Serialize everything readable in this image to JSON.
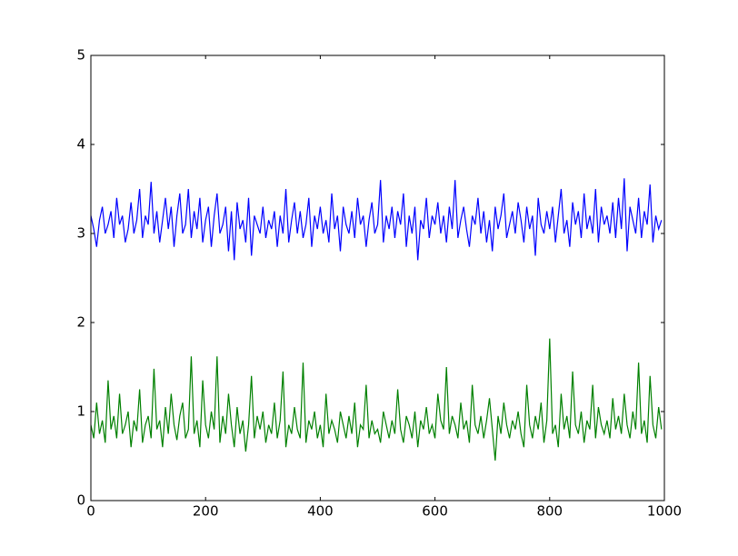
{
  "chart_data": {
    "type": "line",
    "x": [
      0,
      5,
      10,
      15,
      20,
      25,
      30,
      35,
      40,
      45,
      50,
      55,
      60,
      65,
      70,
      75,
      80,
      85,
      90,
      95,
      100,
      105,
      110,
      115,
      120,
      125,
      130,
      135,
      140,
      145,
      150,
      155,
      160,
      165,
      170,
      175,
      180,
      185,
      190,
      195,
      200,
      205,
      210,
      215,
      220,
      225,
      230,
      235,
      240,
      245,
      250,
      255,
      260,
      265,
      270,
      275,
      280,
      285,
      290,
      295,
      300,
      305,
      310,
      315,
      320,
      325,
      330,
      335,
      340,
      345,
      350,
      355,
      360,
      365,
      370,
      375,
      380,
      385,
      390,
      395,
      400,
      405,
      410,
      415,
      420,
      425,
      430,
      435,
      440,
      445,
      450,
      455,
      460,
      465,
      470,
      475,
      480,
      485,
      490,
      495,
      500,
      505,
      510,
      515,
      520,
      525,
      530,
      535,
      540,
      545,
      550,
      555,
      560,
      565,
      570,
      575,
      580,
      585,
      590,
      595,
      600,
      605,
      610,
      615,
      620,
      625,
      630,
      635,
      640,
      645,
      650,
      655,
      660,
      665,
      670,
      675,
      680,
      685,
      690,
      695,
      700,
      705,
      710,
      715,
      720,
      725,
      730,
      735,
      740,
      745,
      750,
      755,
      760,
      765,
      770,
      775,
      780,
      785,
      790,
      795,
      800,
      805,
      810,
      815,
      820,
      825,
      830,
      835,
      840,
      845,
      850,
      855,
      860,
      865,
      870,
      875,
      880,
      885,
      890,
      895,
      900,
      905,
      910,
      915,
      920,
      925,
      930,
      935,
      940,
      945,
      950,
      955,
      960,
      965,
      970,
      975,
      980,
      985,
      990,
      995
    ],
    "series": [
      {
        "color": "#0000ff",
        "values": [
          3.2,
          3.05,
          2.85,
          3.15,
          3.3,
          3.0,
          3.1,
          3.25,
          2.95,
          3.4,
          3.1,
          3.2,
          2.9,
          3.05,
          3.35,
          3.0,
          3.15,
          3.5,
          2.95,
          3.2,
          3.1,
          3.58,
          3.0,
          3.25,
          2.9,
          3.15,
          3.4,
          3.05,
          3.3,
          2.85,
          3.2,
          3.45,
          3.0,
          3.1,
          3.5,
          2.95,
          3.25,
          3.05,
          3.4,
          2.9,
          3.15,
          3.3,
          2.85,
          3.2,
          3.45,
          3.0,
          3.1,
          3.3,
          2.8,
          3.25,
          2.7,
          3.35,
          3.05,
          3.15,
          2.9,
          3.4,
          2.75,
          3.2,
          3.1,
          3.0,
          3.3,
          2.95,
          3.15,
          3.05,
          3.25,
          2.85,
          3.2,
          3.0,
          3.5,
          2.9,
          3.15,
          3.35,
          3.0,
          3.25,
          2.95,
          3.1,
          3.4,
          2.85,
          3.2,
          3.05,
          3.3,
          3.0,
          3.15,
          2.9,
          3.45,
          3.05,
          3.2,
          2.8,
          3.3,
          3.1,
          3.0,
          3.25,
          2.95,
          3.4,
          3.1,
          3.2,
          2.85,
          3.15,
          3.35,
          3.0,
          3.1,
          3.6,
          2.9,
          3.2,
          3.05,
          3.3,
          2.95,
          3.25,
          3.1,
          3.45,
          2.85,
          3.2,
          3.0,
          3.3,
          2.7,
          3.15,
          3.05,
          3.4,
          2.95,
          3.2,
          3.1,
          3.35,
          3.0,
          3.2,
          2.9,
          3.3,
          3.05,
          3.6,
          2.95,
          3.15,
          3.3,
          3.05,
          2.85,
          3.2,
          3.1,
          3.4,
          3.0,
          3.25,
          2.9,
          3.15,
          2.8,
          3.3,
          3.05,
          3.2,
          3.45,
          2.95,
          3.1,
          3.25,
          3.0,
          3.35,
          3.15,
          2.9,
          3.3,
          3.05,
          3.2,
          2.75,
          3.4,
          3.1,
          3.0,
          3.25,
          3.05,
          3.3,
          2.9,
          3.2,
          3.5,
          3.0,
          3.15,
          2.85,
          3.35,
          3.1,
          3.25,
          2.95,
          3.45,
          3.05,
          3.2,
          3.0,
          3.5,
          2.9,
          3.3,
          3.1,
          3.2,
          3.0,
          3.35,
          2.95,
          3.4,
          3.05,
          3.62,
          2.8,
          3.3,
          3.15,
          3.0,
          3.4,
          2.95,
          3.25,
          3.1,
          3.55,
          2.9,
          3.2,
          3.05,
          3.15
        ]
      },
      {
        "color": "#008000",
        "values": [
          0.85,
          0.7,
          1.1,
          0.75,
          0.9,
          0.65,
          1.35,
          0.8,
          0.95,
          0.7,
          1.2,
          0.75,
          0.85,
          1.0,
          0.6,
          0.9,
          0.78,
          1.25,
          0.65,
          0.85,
          0.95,
          0.7,
          1.48,
          0.8,
          0.9,
          0.6,
          1.05,
          0.75,
          1.2,
          0.85,
          0.68,
          0.95,
          1.1,
          0.7,
          0.8,
          1.62,
          0.75,
          0.9,
          0.6,
          1.35,
          0.85,
          0.7,
          1.0,
          0.8,
          1.62,
          0.65,
          0.95,
          0.75,
          1.2,
          0.85,
          0.6,
          1.05,
          0.75,
          0.9,
          0.55,
          0.85,
          1.4,
          0.7,
          0.95,
          0.8,
          1.0,
          0.65,
          0.85,
          0.75,
          1.1,
          0.7,
          0.9,
          1.45,
          0.6,
          0.85,
          0.75,
          1.05,
          0.8,
          0.7,
          1.55,
          0.65,
          0.9,
          0.8,
          1.0,
          0.7,
          0.85,
          0.6,
          1.2,
          0.75,
          0.9,
          0.8,
          0.65,
          1.0,
          0.85,
          0.7,
          0.95,
          0.75,
          1.1,
          0.6,
          0.85,
          0.8,
          1.3,
          0.7,
          0.9,
          0.75,
          0.8,
          0.65,
          1.0,
          0.85,
          0.7,
          0.9,
          0.75,
          1.25,
          0.8,
          0.65,
          0.95,
          0.85,
          0.7,
          1.0,
          0.6,
          0.9,
          0.8,
          1.05,
          0.75,
          0.85,
          0.7,
          1.2,
          0.9,
          0.8,
          1.5,
          0.75,
          0.95,
          0.85,
          0.7,
          1.1,
          0.8,
          0.9,
          0.65,
          1.3,
          0.85,
          0.75,
          0.95,
          0.7,
          0.9,
          1.15,
          0.8,
          0.45,
          0.95,
          0.75,
          1.1,
          0.85,
          0.7,
          0.9,
          0.8,
          1.0,
          0.75,
          0.6,
          1.3,
          0.85,
          0.7,
          0.95,
          0.8,
          1.1,
          0.65,
          0.9,
          1.82,
          0.75,
          0.85,
          0.6,
          1.2,
          0.8,
          0.95,
          0.7,
          1.45,
          0.85,
          0.75,
          1.0,
          0.65,
          0.9,
          0.8,
          1.3,
          0.7,
          1.05,
          0.85,
          0.75,
          0.9,
          0.7,
          1.15,
          0.8,
          0.95,
          0.75,
          1.2,
          0.85,
          0.7,
          1.0,
          0.8,
          1.55,
          0.75,
          0.9,
          0.65,
          1.4,
          0.85,
          0.7,
          1.05,
          0.8
        ]
      }
    ],
    "xlim": [
      0,
      1000
    ],
    "xticks": [
      0,
      200,
      400,
      600,
      800,
      1000
    ],
    "ylim": [
      0,
      5
    ],
    "yticks": [
      0,
      1,
      2,
      3,
      4,
      5
    ],
    "grid": false
  }
}
